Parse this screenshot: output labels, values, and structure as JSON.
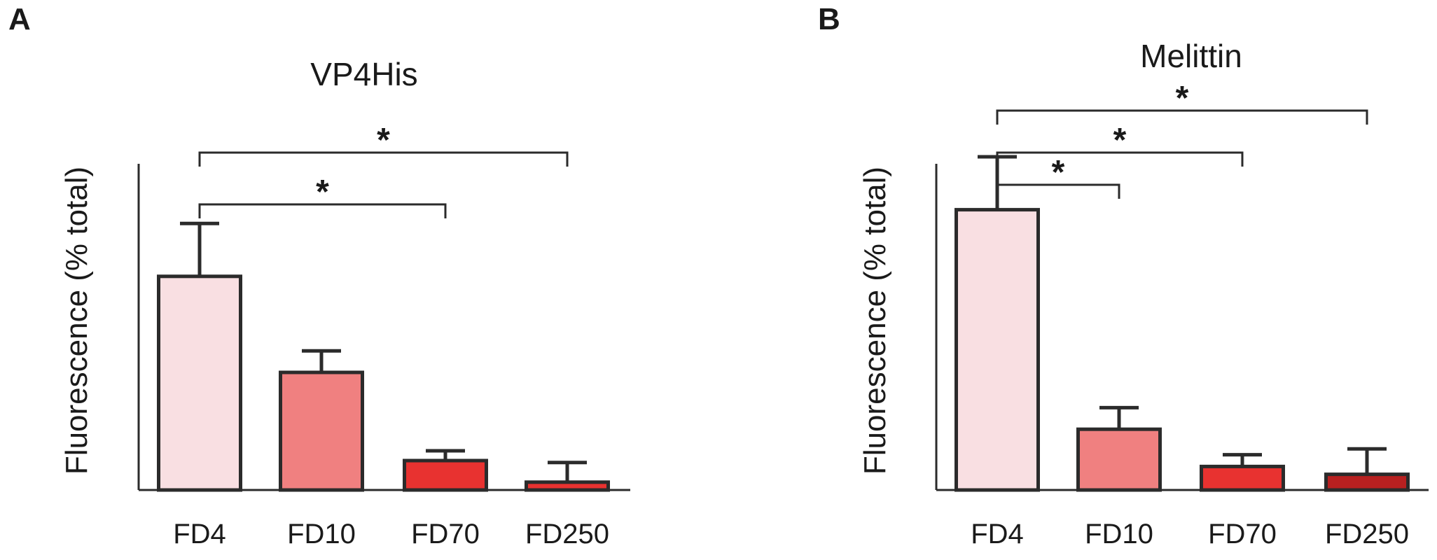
{
  "chart_data": [
    {
      "panel": "A",
      "type": "bar",
      "title": "VP4His",
      "ylabel": "Fluorescence (% total)",
      "xlabel": "",
      "categories": [
        "FD4",
        "FD10",
        "FD70",
        "FD250"
      ],
      "values": [
        54.5,
        30.0,
        7.5,
        2.0
      ],
      "errors": [
        13.5,
        5.5,
        2.5,
        5.0
      ],
      "colors": [
        "#f9dfe2",
        "#f08080",
        "#e83230",
        "#e83230"
      ],
      "ylim": [
        0,
        100
      ],
      "grid": false,
      "significance": [
        {
          "from": 0,
          "to": 2,
          "label": "*"
        },
        {
          "from": 0,
          "to": 3,
          "label": "*"
        }
      ]
    },
    {
      "panel": "B",
      "type": "bar",
      "title": "Melittin",
      "ylabel": "Fluorescence (% total)",
      "xlabel": "",
      "categories": [
        "FD4",
        "FD10",
        "FD70",
        "FD250"
      ],
      "values": [
        71.5,
        15.5,
        6.0,
        4.0
      ],
      "errors": [
        13.5,
        5.5,
        3.0,
        6.5
      ],
      "colors": [
        "#f9dfe2",
        "#f08080",
        "#e83230",
        "#b82020"
      ],
      "ylim": [
        0,
        100
      ],
      "grid": false,
      "significance": [
        {
          "from": 0,
          "to": 1,
          "label": "*"
        },
        {
          "from": 0,
          "to": 2,
          "label": "*"
        },
        {
          "from": 0,
          "to": 3,
          "label": "*"
        }
      ]
    }
  ]
}
